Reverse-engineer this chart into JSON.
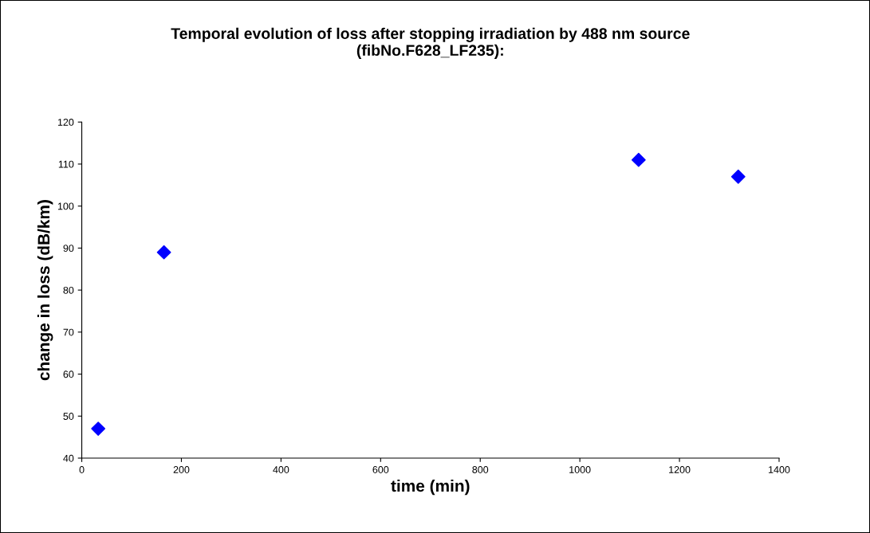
{
  "chart_data": {
    "type": "scatter",
    "title": "Temporal evolution of loss after stopping irradiation by 488 nm source\n(fibNo.F628_LF235):",
    "xlabel": "time (min)",
    "ylabel": "change in loss (dB/km)",
    "x": [
      33,
      165,
      1118,
      1318
    ],
    "series": [
      {
        "color": "#0000ff",
        "values": [
          47,
          89,
          111,
          107
        ]
      }
    ],
    "xlim": [
      0,
      1400
    ],
    "xticks": [
      0,
      200,
      400,
      600,
      800,
      1000,
      1200,
      1400
    ],
    "ylim": [
      40,
      120
    ],
    "yticks": [
      40,
      50,
      60,
      70,
      80,
      90,
      100,
      110,
      120
    ],
    "marker": "diamond",
    "grid": false,
    "legend": false
  }
}
